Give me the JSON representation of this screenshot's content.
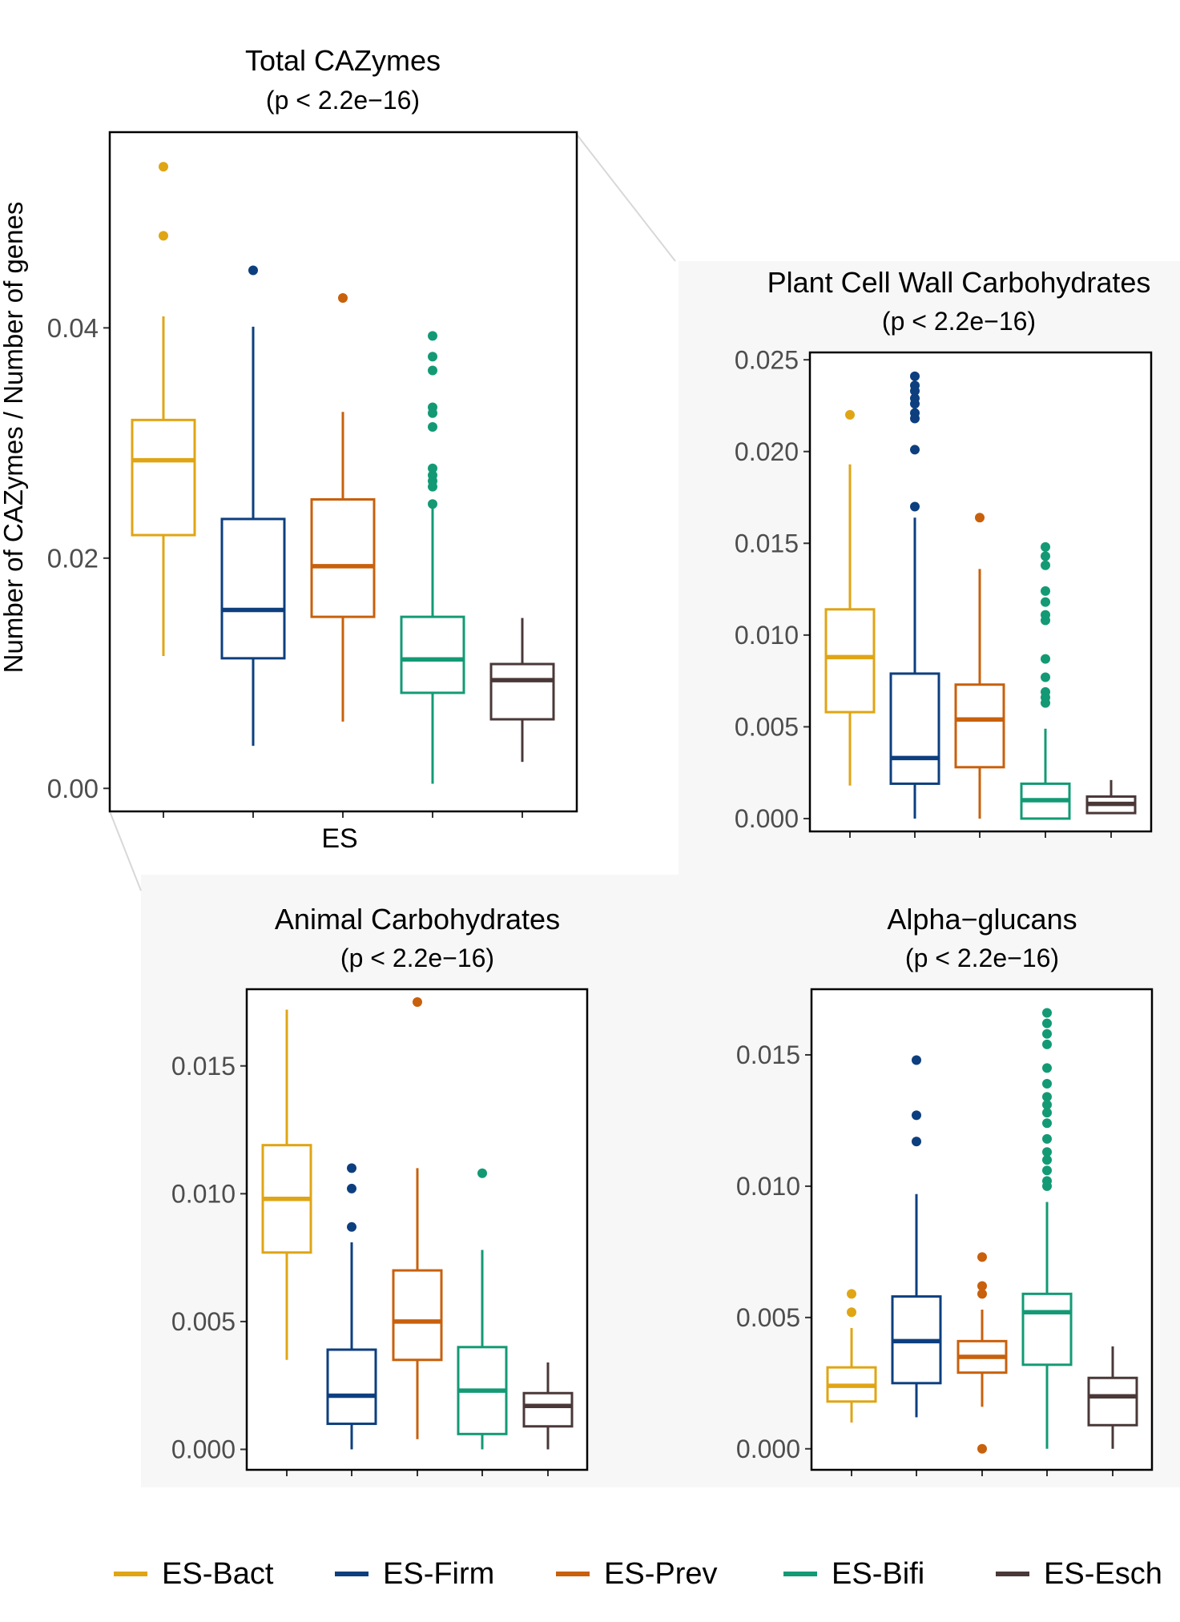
{
  "colors": {
    "ES-Bact": "#E0A515",
    "ES-Firm": "#0D3F7F",
    "ES-Prev": "#C8600C",
    "ES-Bifi": "#139A75",
    "ES-Esch": "#4A3838",
    "panel_bg": "#F7F7F7",
    "frame": "#000000",
    "axis_text": "#4D4D4D",
    "connector": "#D8D8D8"
  },
  "legend": {
    "items": [
      {
        "label": "ES-Bact",
        "color_key": "ES-Bact"
      },
      {
        "label": "ES-Firm",
        "color_key": "ES-Firm"
      },
      {
        "label": "ES-Prev",
        "color_key": "ES-Prev"
      },
      {
        "label": "ES-Bifi",
        "color_key": "ES-Bifi"
      },
      {
        "label": "ES-Esch",
        "color_key": "ES-Esch"
      }
    ]
  },
  "chart_data": [
    {
      "type": "box",
      "id": "total",
      "title": "Total CAZymes",
      "subtitle": "(p < 2.2e−16)",
      "ylabel": "Number of CAZymes / Number of genes",
      "xlabel": "ES",
      "ylim": [
        -0.002,
        0.057
      ],
      "yticks": [
        0.0,
        0.02,
        0.04
      ],
      "ytick_labels": [
        "0.00",
        "0.02",
        "0.04"
      ],
      "series": [
        {
          "name": "ES-Bact",
          "whisker_low": 0.0115,
          "q1": 0.022,
          "median": 0.0285,
          "q3": 0.032,
          "whisker_high": 0.041,
          "outliers": [
            0.048,
            0.054
          ]
        },
        {
          "name": "ES-Firm",
          "whisker_low": 0.0037,
          "q1": 0.0113,
          "median": 0.0155,
          "q3": 0.0234,
          "whisker_high": 0.0401,
          "outliers": [
            0.045
          ]
        },
        {
          "name": "ES-Prev",
          "whisker_low": 0.0058,
          "q1": 0.0149,
          "median": 0.0193,
          "q3": 0.0251,
          "whisker_high": 0.0327,
          "outliers": [
            0.0426
          ]
        },
        {
          "name": "ES-Bifi",
          "whisker_low": 0.0004,
          "q1": 0.0083,
          "median": 0.0112,
          "q3": 0.0149,
          "whisker_high": 0.0245,
          "outliers": [
            0.0247,
            0.0262,
            0.0267,
            0.0272,
            0.0278,
            0.0314,
            0.0326,
            0.0331,
            0.0363,
            0.0375,
            0.0393
          ]
        },
        {
          "name": "ES-Esch",
          "whisker_low": 0.0023,
          "q1": 0.006,
          "median": 0.0094,
          "q3": 0.0108,
          "whisker_high": 0.0148,
          "outliers": []
        }
      ]
    },
    {
      "type": "box",
      "id": "plant",
      "title": "Plant Cell Wall Carbohydrates",
      "subtitle": "(p < 2.2e−16)",
      "ylim": [
        -0.0007,
        0.0254
      ],
      "yticks": [
        0.0,
        0.005,
        0.01,
        0.015,
        0.02,
        0.025
      ],
      "ytick_labels": [
        "0.000",
        "0.005",
        "0.010",
        "0.015",
        "0.020",
        "0.025"
      ],
      "series": [
        {
          "name": "ES-Bact",
          "whisker_low": 0.0018,
          "q1": 0.0058,
          "median": 0.0088,
          "q3": 0.0114,
          "whisker_high": 0.0193,
          "outliers": [
            0.022
          ]
        },
        {
          "name": "ES-Firm",
          "whisker_low": 0.0,
          "q1": 0.0019,
          "median": 0.0033,
          "q3": 0.0079,
          "whisker_high": 0.0164,
          "outliers": [
            0.017,
            0.0201,
            0.0218,
            0.0221,
            0.0226,
            0.0229,
            0.0233,
            0.0236,
            0.0241
          ]
        },
        {
          "name": "ES-Prev",
          "whisker_low": 0.0,
          "q1": 0.0028,
          "median": 0.0054,
          "q3": 0.0073,
          "whisker_high": 0.0136,
          "outliers": [
            0.0164
          ]
        },
        {
          "name": "ES-Bifi",
          "whisker_low": 0.0,
          "q1": 0.0,
          "median": 0.001,
          "q3": 0.0019,
          "whisker_high": 0.0049,
          "outliers": [
            0.0063,
            0.0066,
            0.0069,
            0.0077,
            0.0087,
            0.0108,
            0.0111,
            0.0118,
            0.0124,
            0.0138,
            0.0143,
            0.0148
          ]
        },
        {
          "name": "ES-Esch",
          "whisker_low": 0.0003,
          "q1": 0.0003,
          "median": 0.0008,
          "q3": 0.0012,
          "whisker_high": 0.0021,
          "outliers": []
        }
      ]
    },
    {
      "type": "box",
      "id": "animal",
      "title": "Animal Carbohydrates",
      "subtitle": "(p < 2.2e−16)",
      "ylim": [
        -0.0008,
        0.018
      ],
      "yticks": [
        0.0,
        0.005,
        0.01,
        0.015
      ],
      "ytick_labels": [
        "0.000",
        "0.005",
        "0.010",
        "0.015"
      ],
      "series": [
        {
          "name": "ES-Bact",
          "whisker_low": 0.0035,
          "q1": 0.0077,
          "median": 0.0098,
          "q3": 0.0119,
          "whisker_high": 0.0172,
          "outliers": []
        },
        {
          "name": "ES-Firm",
          "whisker_low": 0.0,
          "q1": 0.001,
          "median": 0.0021,
          "q3": 0.0039,
          "whisker_high": 0.0081,
          "outliers": [
            0.0087,
            0.0102,
            0.011
          ]
        },
        {
          "name": "ES-Prev",
          "whisker_low": 0.0004,
          "q1": 0.0035,
          "median": 0.005,
          "q3": 0.007,
          "whisker_high": 0.011,
          "outliers": [
            0.0175
          ]
        },
        {
          "name": "ES-Bifi",
          "whisker_low": 0.0,
          "q1": 0.0006,
          "median": 0.0023,
          "q3": 0.004,
          "whisker_high": 0.0078,
          "outliers": [
            0.0108
          ]
        },
        {
          "name": "ES-Esch",
          "whisker_low": 0.0,
          "q1": 0.0009,
          "median": 0.0017,
          "q3": 0.0022,
          "whisker_high": 0.0034,
          "outliers": []
        }
      ]
    },
    {
      "type": "box",
      "id": "alpha",
      "title": "Alpha−glucans",
      "subtitle": "(p < 2.2e−16)",
      "ylim": [
        -0.0008,
        0.0175
      ],
      "yticks": [
        0.0,
        0.005,
        0.01,
        0.015
      ],
      "ytick_labels": [
        "0.000",
        "0.005",
        "0.010",
        "0.015"
      ],
      "series": [
        {
          "name": "ES-Bact",
          "whisker_low": 0.001,
          "q1": 0.0018,
          "median": 0.0024,
          "q3": 0.0031,
          "whisker_high": 0.0046,
          "outliers": [
            0.0052,
            0.0059
          ]
        },
        {
          "name": "ES-Firm",
          "whisker_low": 0.0012,
          "q1": 0.0025,
          "median": 0.0041,
          "q3": 0.0058,
          "whisker_high": 0.0097,
          "outliers": [
            0.0117,
            0.0127,
            0.0148
          ]
        },
        {
          "name": "ES-Prev",
          "whisker_low": 0.0016,
          "q1": 0.0029,
          "median": 0.0035,
          "q3": 0.0041,
          "whisker_high": 0.0053,
          "outliers": [
            0.0,
            0.0059,
            0.0062,
            0.0073
          ]
        },
        {
          "name": "ES-Bifi",
          "whisker_low": 0.0,
          "q1": 0.0032,
          "median": 0.0052,
          "q3": 0.0059,
          "whisker_high": 0.0094,
          "outliers": [
            0.01,
            0.0102,
            0.0106,
            0.011,
            0.0113,
            0.0118,
            0.0124,
            0.0128,
            0.0131,
            0.0134,
            0.0139,
            0.0145,
            0.0154,
            0.0158,
            0.0162,
            0.0166
          ]
        },
        {
          "name": "ES-Esch",
          "whisker_low": 0.0,
          "q1": 0.0009,
          "median": 0.002,
          "q3": 0.0027,
          "whisker_high": 0.0039,
          "outliers": []
        }
      ]
    }
  ]
}
